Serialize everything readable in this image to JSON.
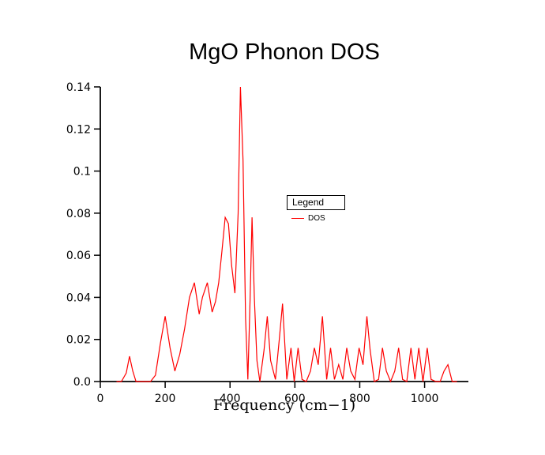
{
  "chart_data": {
    "type": "line",
    "title": "MgO Phonon DOS",
    "xlabel": "Frequency (cm−1)",
    "ylabel": "",
    "xlim": [
      0,
      1135
    ],
    "ylim": [
      0,
      0.14
    ],
    "grid": false,
    "x_ticks": [
      0,
      200,
      400,
      600,
      800,
      1000
    ],
    "x_tick_labels": [
      "0",
      "200",
      "400",
      "600",
      "800",
      "1000"
    ],
    "y_ticks": [
      0,
      0.02,
      0.04,
      0.06,
      0.08,
      0.1,
      0.12,
      0.14
    ],
    "y_tick_labels": [
      "0.0",
      "0.02",
      "0.04",
      "0.06",
      "0.08",
      "0.1",
      "0.12",
      "0.14"
    ],
    "legend": {
      "title": "Legend",
      "position": "upper-middle",
      "entries": [
        {
          "label": "DOS",
          "color": "#ff0000"
        }
      ]
    },
    "series": [
      {
        "name": "DOS",
        "color": "#ff0000",
        "x": [
          50,
          65,
          80,
          90,
          100,
          110,
          125,
          140,
          155,
          170,
          185,
          200,
          215,
          230,
          245,
          260,
          275,
          290,
          305,
          315,
          330,
          345,
          355,
          365,
          375,
          385,
          395,
          405,
          415,
          425,
          432,
          440,
          448,
          455,
          462,
          468,
          475,
          483,
          492,
          505,
          515,
          525,
          540,
          552,
          562,
          575,
          588,
          598,
          610,
          622,
          635,
          648,
          660,
          672,
          685,
          698,
          710,
          722,
          735,
          748,
          760,
          772,
          785,
          798,
          810,
          822,
          832,
          845,
          858,
          870,
          882,
          895,
          908,
          920,
          932,
          945,
          958,
          970,
          982,
          995,
          1008,
          1020,
          1035,
          1048,
          1060,
          1072,
          1085,
          1100
        ],
        "y": [
          0,
          0,
          0.004,
          0.012,
          0.005,
          0,
          0,
          0,
          0,
          0.003,
          0.018,
          0.031,
          0.016,
          0.005,
          0.013,
          0.025,
          0.04,
          0.047,
          0.032,
          0.04,
          0.047,
          0.033,
          0.038,
          0.047,
          0.062,
          0.078,
          0.075,
          0.055,
          0.042,
          0.08,
          0.14,
          0.105,
          0.03,
          0.001,
          0.04,
          0.078,
          0.04,
          0.01,
          0,
          0.015,
          0.031,
          0.01,
          0.001,
          0.02,
          0.037,
          0.001,
          0.016,
          0,
          0.016,
          0.001,
          0,
          0.005,
          0.016,
          0.008,
          0.031,
          0.001,
          0.016,
          0.001,
          0.008,
          0.001,
          0.016,
          0.005,
          0.001,
          0.016,
          0.008,
          0.031,
          0.015,
          0,
          0.001,
          0.016,
          0.005,
          0,
          0.005,
          0.016,
          0.001,
          0,
          0.016,
          0.001,
          0.016,
          0,
          0.016,
          0.001,
          0,
          0,
          0.005,
          0.008,
          0,
          0
        ]
      }
    ],
    "axis_color": "#000000",
    "background_color": "#ffffff"
  }
}
